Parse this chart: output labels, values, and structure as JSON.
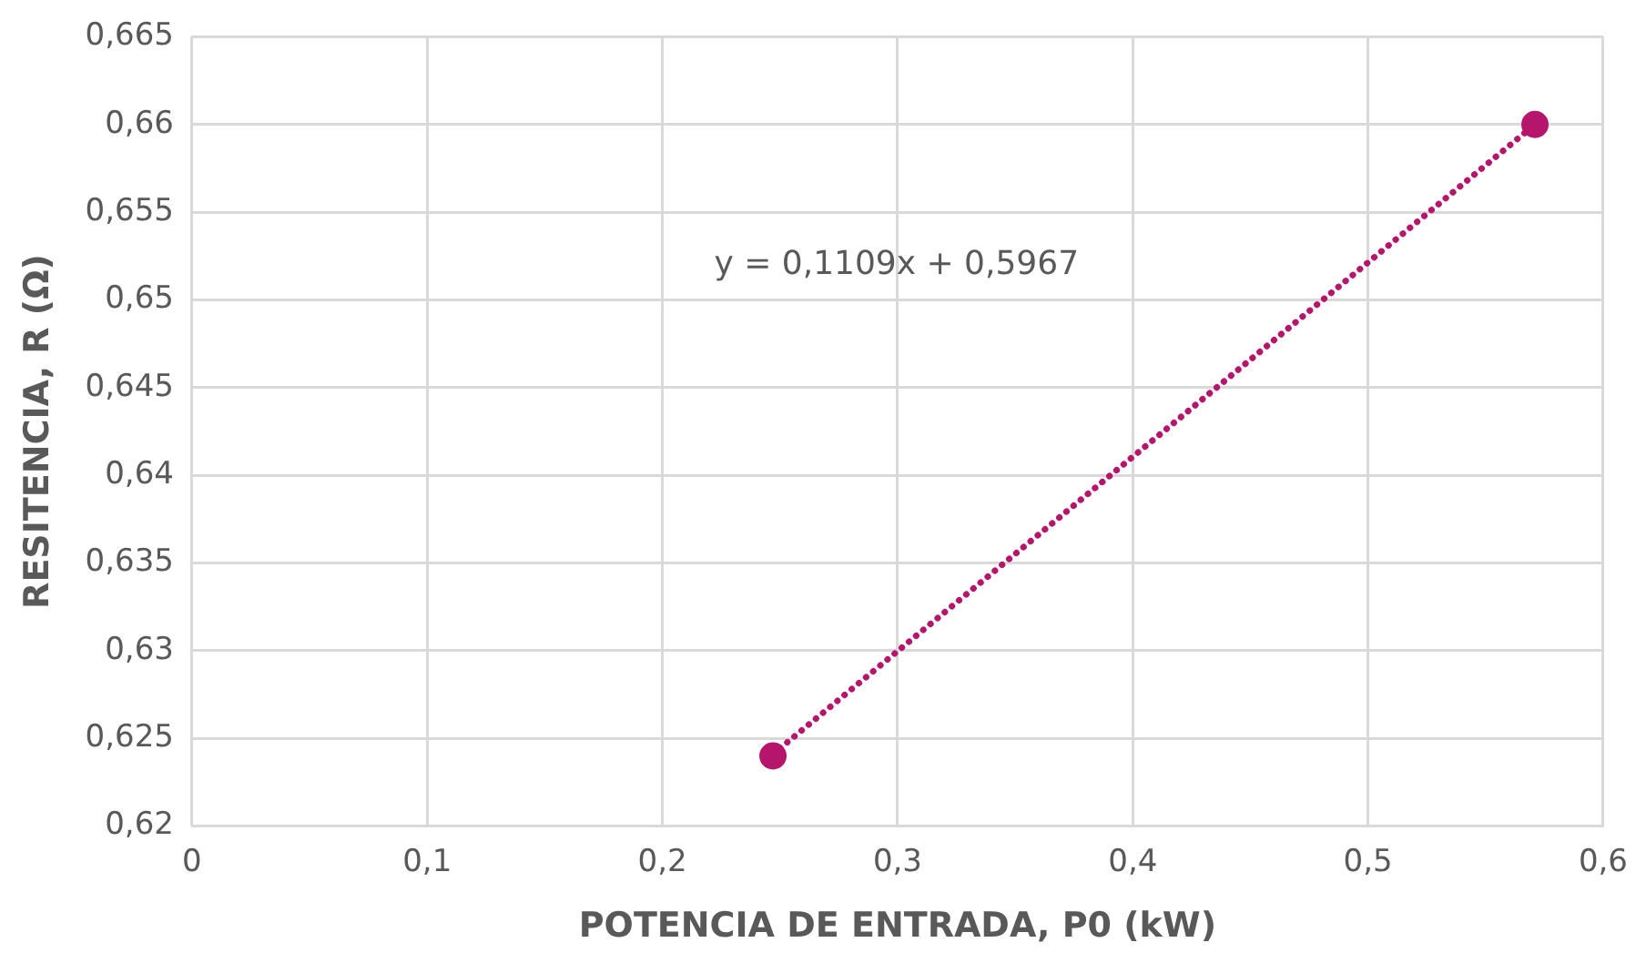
{
  "chart_data": {
    "type": "scatter",
    "xlabel": "POTENCIA DE ENTRADA, P0 (kW)",
    "ylabel": "RESITENCIA, R (Ω)",
    "annotations": [
      "y = 0,1109x + 0,5967"
    ],
    "x": [
      0.247,
      0.571
    ],
    "series": [
      {
        "type": "scatter",
        "color": "#b5166b",
        "values": [
          0.624,
          0.66
        ],
        "marker": "circle"
      },
      {
        "type": "line",
        "color": "#b5166b",
        "values": [
          0.6241,
          0.66
        ],
        "marker": "none",
        "line_style": "dotted"
      }
    ],
    "xlim": [
      0,
      0.6
    ],
    "xticks": [
      0,
      {
        "value": 0.1,
        "label": "0,1"
      },
      {
        "value": 0.2,
        "label": "0,2"
      },
      {
        "value": 0.3,
        "label": "0,3"
      },
      {
        "value": 0.4,
        "label": "0,4"
      },
      {
        "value": 0.5,
        "label": "0,5"
      },
      {
        "value": 0.6,
        "label": "0,6"
      }
    ],
    "ylim": [
      0.62,
      0.665
    ],
    "yticks": [
      {
        "value": 0.62,
        "label": "0,62"
      },
      {
        "value": 0.625,
        "label": "0,625"
      },
      {
        "value": 0.63,
        "label": "0,63"
      },
      {
        "value": 0.635,
        "label": "0,635"
      },
      {
        "value": 0.64,
        "label": "0,64"
      },
      {
        "value": 0.645,
        "label": "0,645"
      },
      {
        "value": 0.65,
        "label": "0,65"
      },
      {
        "value": 0.655,
        "label": "0,655"
      },
      {
        "value": 0.66,
        "label": "0,66"
      },
      {
        "value": 0.665,
        "label": "0,665"
      }
    ],
    "grid": true,
    "legend": false
  }
}
